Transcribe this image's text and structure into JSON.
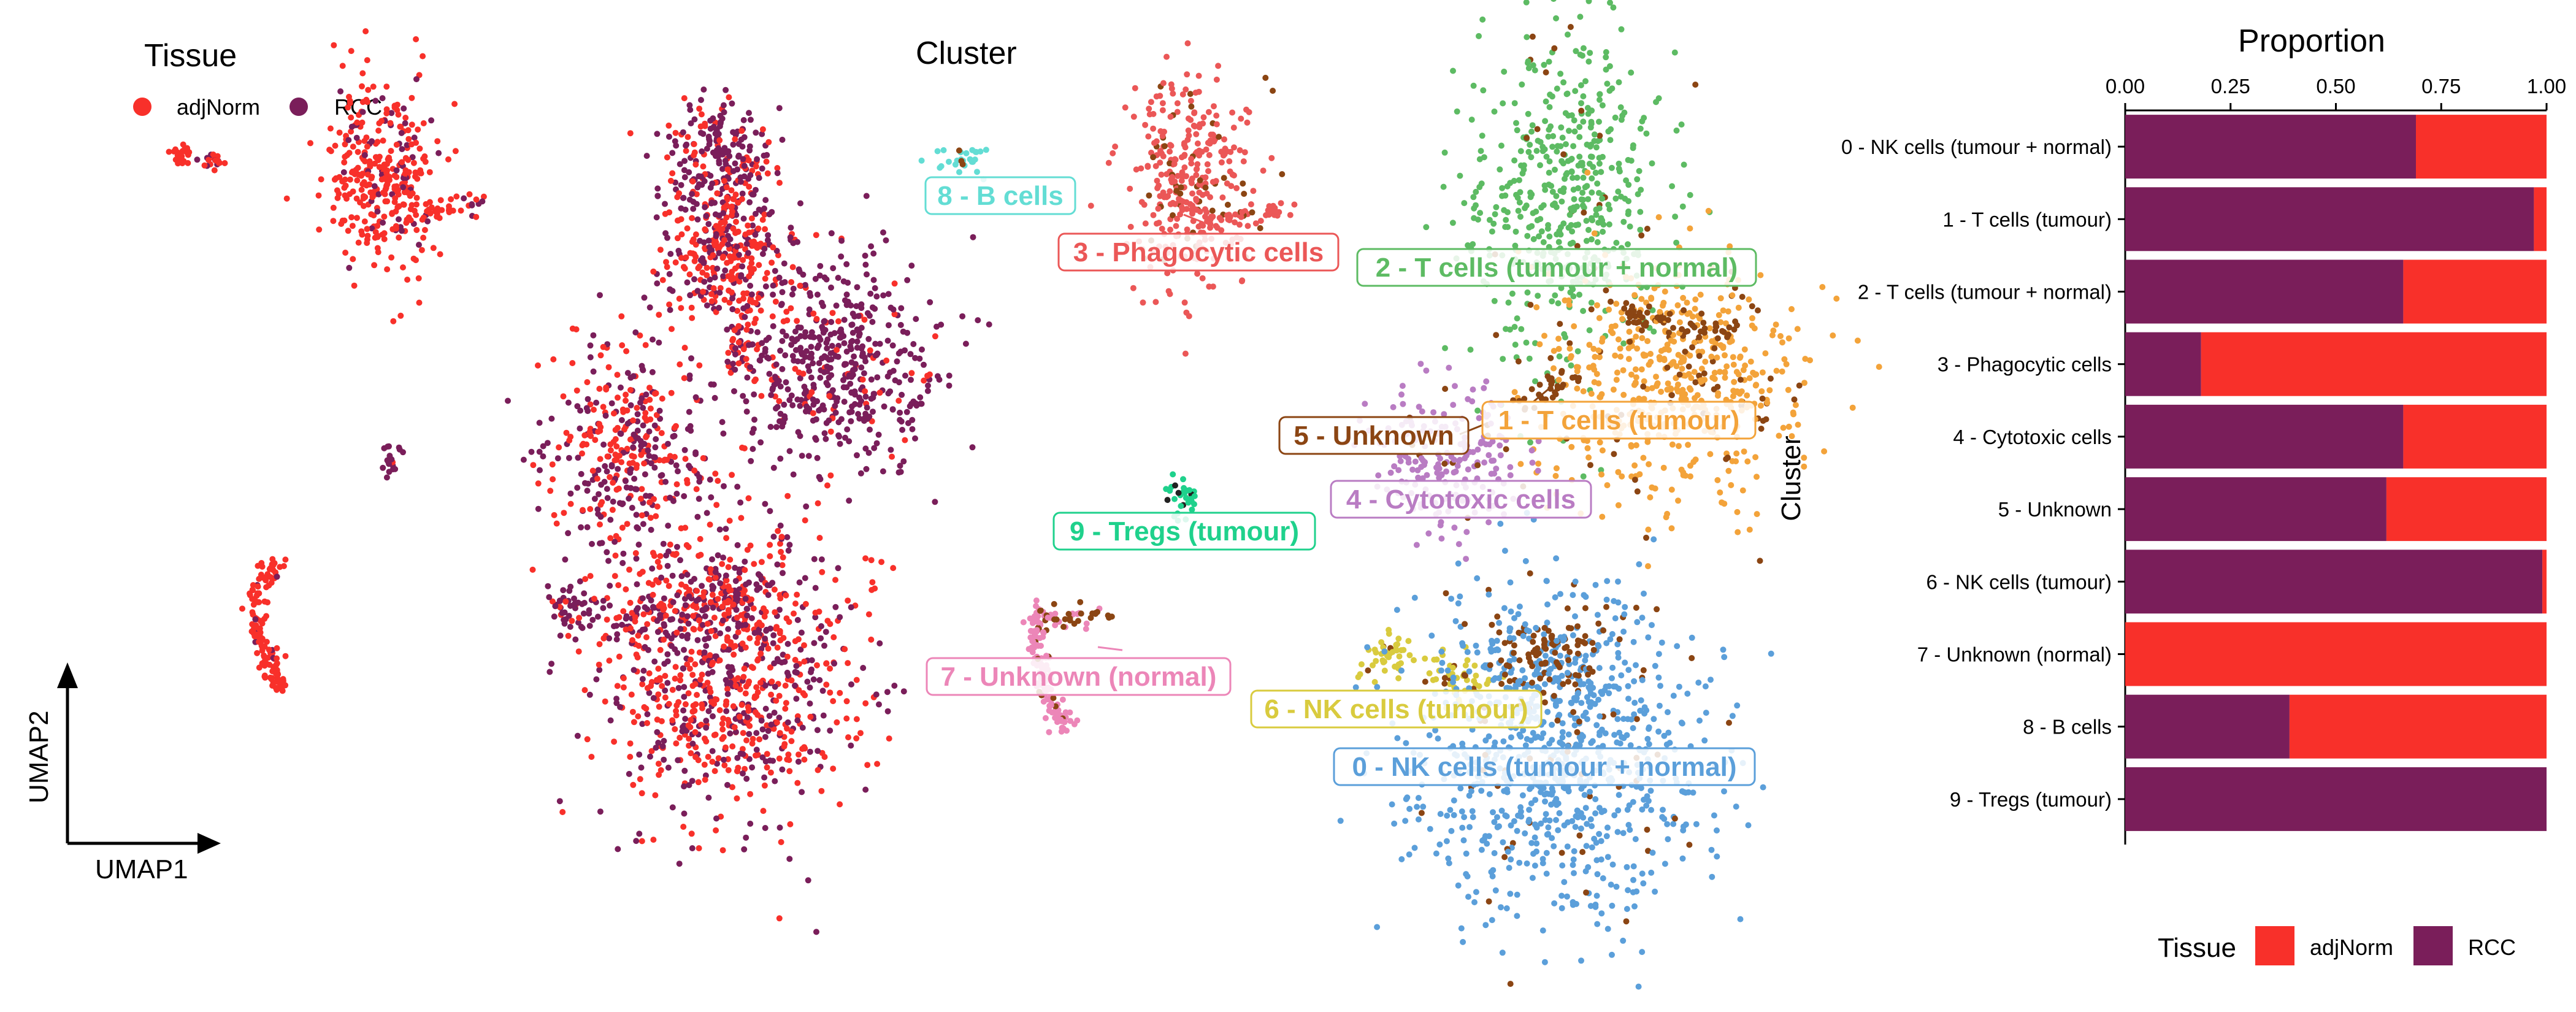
{
  "colors": {
    "adjNorm": "#F8302A",
    "RCC": "#7A1E5A",
    "clusters": [
      "#5B9FDA",
      "#F3A33A",
      "#5DBB63",
      "#EB5757",
      "#B97CC3",
      "#8B4513",
      "#D9CB3E",
      "#EC86B8",
      "#63DDD4",
      "#1FD18C"
    ]
  },
  "panels": {
    "tissue": {
      "title": "Tissue",
      "legend": [
        {
          "label": "adjNorm",
          "color": "#F8302A"
        },
        {
          "label": "RCC",
          "color": "#7A1E5A"
        }
      ],
      "xaxis_label": "UMAP1",
      "yaxis_label": "UMAP2"
    },
    "cluster": {
      "title": "Cluster",
      "labels": [
        "0 - NK cells (tumour + normal)",
        "1 - T cells (tumour)",
        "2 - T cells (tumour + normal)",
        "3 - Phagocytic cells",
        "4 - Cytotoxic cells",
        "5 - Unknown",
        "6 - NK cells (tumour)",
        "7 - Unknown (normal)",
        "8 - B cells",
        "9 - Tregs (tumour)"
      ]
    }
  },
  "chart_data": [
    {
      "type": "scatter",
      "title": "Tissue",
      "xlabel": "UMAP1",
      "ylabel": "UMAP2",
      "color_by": "Tissue",
      "legend": [
        "adjNorm",
        "RCC"
      ],
      "legend_placement": "top-left",
      "grid": false
    },
    {
      "type": "scatter",
      "title": "Cluster",
      "color_by": "Cluster",
      "labels": [
        "0 - NK cells (tumour + normal)",
        "1 - T cells (tumour)",
        "2 - T cells (tumour + normal)",
        "3 - Phagocytic cells",
        "4 - Cytotoxic cells",
        "5 - Unknown",
        "6 - NK cells (tumour)",
        "7 - Unknown (normal)",
        "8 - B cells",
        "9 - Tregs (tumour)"
      ],
      "grid": false
    },
    {
      "type": "bar",
      "orientation": "horizontal",
      "stacked": true,
      "title": "Proportion",
      "ylabel": "Cluster",
      "xlim": [
        0,
        1
      ],
      "xticks": [
        "0.00",
        "0.25",
        "0.50",
        "0.75",
        "1.00"
      ],
      "categories": [
        "0 - NK cells (tumour + normal)",
        "1 - T cells (tumour)",
        "2 - T cells (tumour + normal)",
        "3 - Phagocytic cells",
        "4 - Cytotoxic cells",
        "5 - Unknown",
        "6 - NK cells (tumour)",
        "7 - Unknown (normal)",
        "8 - B cells",
        "9 - Tregs (tumour)"
      ],
      "series": [
        {
          "name": "RCC",
          "values": [
            0.69,
            0.97,
            0.66,
            0.18,
            0.66,
            0.62,
            0.99,
            0.0,
            0.39,
            1.0
          ]
        },
        {
          "name": "adjNorm",
          "values": [
            0.31,
            0.03,
            0.34,
            0.82,
            0.34,
            0.38,
            0.01,
            1.0,
            0.61,
            0.0
          ]
        }
      ],
      "legend_title": "Tissue",
      "legend": [
        "adjNorm",
        "RCC"
      ],
      "legend_placement": "bottom",
      "grid": false
    }
  ]
}
